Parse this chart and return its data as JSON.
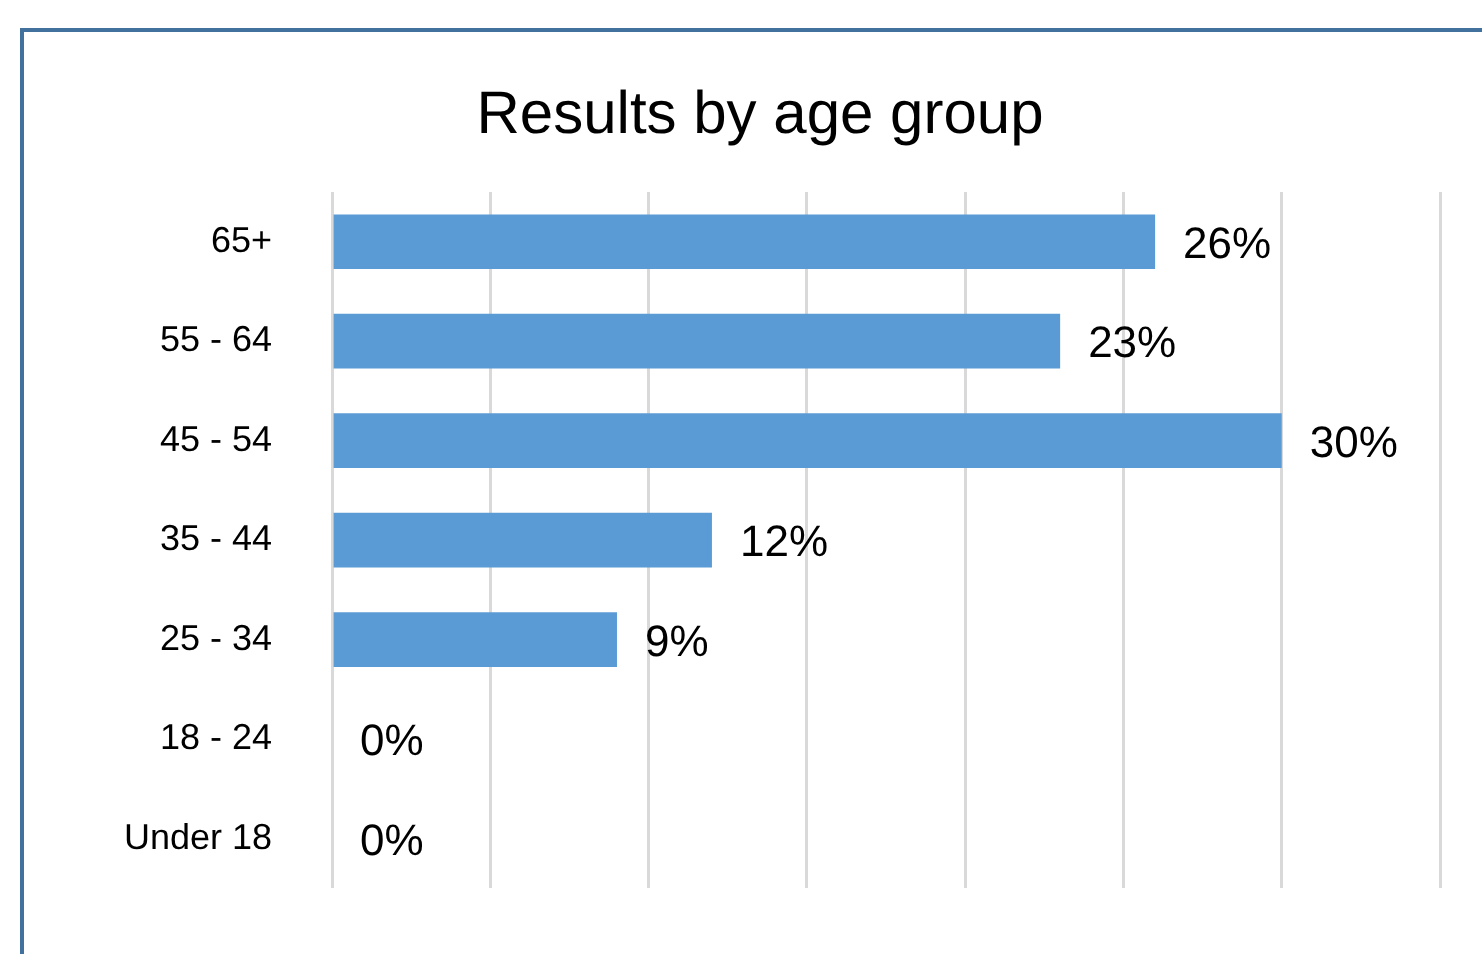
{
  "chart_data": {
    "type": "bar",
    "orientation": "horizontal",
    "title": "Results by age group",
    "categories": [
      "65+",
      "55 - 64",
      "45 - 54",
      "35 - 44",
      "25 - 34",
      "18 - 24",
      "Under 18"
    ],
    "values": [
      26,
      23,
      30,
      12,
      9,
      0,
      0
    ],
    "value_labels": [
      "26%",
      "23%",
      "30%",
      "12%",
      "9%",
      "0%",
      "0%"
    ],
    "color": "#5b9bd5",
    "xlim": [
      0,
      35
    ],
    "xticks": [
      {
        "value": 0,
        "label": null
      },
      {
        "value": 5,
        "label": null
      },
      {
        "value": 10,
        "label": null
      },
      {
        "value": 15,
        "label": null
      },
      {
        "value": 20,
        "label": null
      },
      {
        "value": 25,
        "label": null
      },
      {
        "value": 30,
        "label": null
      },
      {
        "value": 35,
        "label": null
      }
    ],
    "tick_labels": "y",
    "grid": "x",
    "legend": false
  }
}
